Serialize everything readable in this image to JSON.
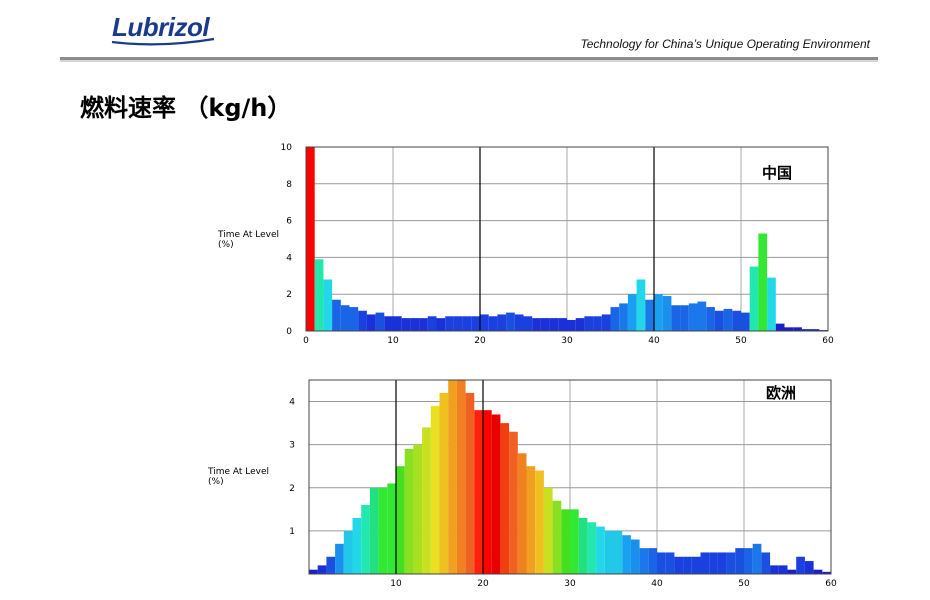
{
  "header": {
    "logo_text": "Lubrizol",
    "tagline": "Technology for China’s Unique Operating Environment"
  },
  "title": "燃料速率 （kg/h）",
  "chart_data": [
    {
      "type": "bar",
      "label": "中国",
      "ylabel_lines": [
        "Time At Level",
        "(%)"
      ],
      "xlim": [
        0,
        60
      ],
      "ylim": [
        0,
        10
      ],
      "xticks": [
        0,
        10,
        20,
        30,
        40,
        50,
        60
      ],
      "yticks": [
        0,
        2,
        4,
        6,
        8,
        10
      ],
      "dark_vlines": [
        20,
        40
      ],
      "x_start": 0,
      "bin_width": 1,
      "values": [
        10,
        3.9,
        2.8,
        1.7,
        1.4,
        1.3,
        1.1,
        0.9,
        1.0,
        0.8,
        0.8,
        0.7,
        0.7,
        0.7,
        0.8,
        0.7,
        0.8,
        0.8,
        0.8,
        0.8,
        0.9,
        0.8,
        0.9,
        1.0,
        0.9,
        0.8,
        0.7,
        0.7,
        0.7,
        0.7,
        0.6,
        0.7,
        0.8,
        0.8,
        0.9,
        1.3,
        1.5,
        2.0,
        2.8,
        1.7,
        2.0,
        1.9,
        1.4,
        1.4,
        1.5,
        1.6,
        1.3,
        1.1,
        1.2,
        1.1,
        1.0,
        3.5,
        5.3,
        2.9,
        0.4,
        0.2,
        0.2,
        0.1,
        0.1,
        0.05
      ],
      "colors": [
        "#ff0000",
        "#22e8b0",
        "#22d8e8",
        "#1a64e6",
        "#1a64e6",
        "#1a64e6",
        "#1a40e0",
        "#1a30d8",
        "#1a50e0",
        "#1a30d8",
        "#1a30d8",
        "#1a30d8",
        "#1a30d8",
        "#1a30d8",
        "#1a40e0",
        "#1a30d8",
        "#1a40e0",
        "#1a40e0",
        "#1a40e0",
        "#1a40e0",
        "#1a40e0",
        "#1a40e0",
        "#1a40e0",
        "#1a50e0",
        "#1a40e0",
        "#1a40e0",
        "#1a30d8",
        "#1a30d8",
        "#1a30d8",
        "#1a30d8",
        "#1a30d8",
        "#1a30d8",
        "#1a40e0",
        "#1a40e0",
        "#1a40e0",
        "#1a64e6",
        "#1a78ea",
        "#1aa0f0",
        "#22d8e8",
        "#1a78ea",
        "#1aa0f0",
        "#1a90ee",
        "#1a64e6",
        "#1a64e6",
        "#1a78ea",
        "#1a78ea",
        "#1a64e6",
        "#1a50e0",
        "#1a64e6",
        "#1a50e0",
        "#1a50e0",
        "#22e8b0",
        "#33e833",
        "#22d8e8",
        "#1a20c8",
        "#1a20c8",
        "#1a20c8",
        "#1a20c8",
        "#1a20c8",
        "#1a20c8"
      ]
    },
    {
      "type": "bar",
      "label": "欧洲",
      "ylabel_lines": [
        "Time At Level",
        "(%)"
      ],
      "xlim": [
        0,
        60
      ],
      "ylim": [
        0,
        4.5
      ],
      "xticks": [
        10,
        20,
        30,
        40,
        50,
        60
      ],
      "yticks": [
        1,
        2,
        3,
        4
      ],
      "dark_vlines": [
        10,
        20
      ],
      "x_start": 0,
      "bin_width": 1,
      "values": [
        0.1,
        0.2,
        0.4,
        0.7,
        1.0,
        1.3,
        1.6,
        2.0,
        2.0,
        2.1,
        2.5,
        2.9,
        3.0,
        3.4,
        3.9,
        4.2,
        4.5,
        4.5,
        4.2,
        3.8,
        3.8,
        3.7,
        3.5,
        3.3,
        2.8,
        2.5,
        2.4,
        2.0,
        1.7,
        1.5,
        1.5,
        1.3,
        1.2,
        1.1,
        1.0,
        1.0,
        0.9,
        0.8,
        0.6,
        0.6,
        0.5,
        0.5,
        0.4,
        0.4,
        0.4,
        0.5,
        0.5,
        0.5,
        0.5,
        0.6,
        0.6,
        0.7,
        0.5,
        0.2,
        0.2,
        0.1,
        0.4,
        0.3,
        0.1,
        0.05
      ],
      "colors": [
        "#1a20c8",
        "#1a30d8",
        "#1a50e0",
        "#1a90ee",
        "#22c8e8",
        "#22d8e8",
        "#22e8b0",
        "#22e080",
        "#33e833",
        "#33e833",
        "#44e020",
        "#88e020",
        "#a8e020",
        "#c8e020",
        "#e8e020",
        "#f0c020",
        "#f0a020",
        "#f08020",
        "#f06020",
        "#ff2010",
        "#ff0000",
        "#e80000",
        "#f04010",
        "#f06020",
        "#f08020",
        "#f0a020",
        "#f0c020",
        "#c8e020",
        "#88e020",
        "#44e020",
        "#33e833",
        "#22e080",
        "#22e8b0",
        "#22d8e8",
        "#22c8e8",
        "#22c8e8",
        "#1aa0f0",
        "#1a90ee",
        "#1a78ea",
        "#1a64e6",
        "#1a50e0",
        "#1a50e0",
        "#1a40e0",
        "#1a40e0",
        "#1a40e0",
        "#1a40e0",
        "#1a40e0",
        "#1a40e0",
        "#1a50e0",
        "#1a50e0",
        "#1a64e6",
        "#1a78ea",
        "#1a50e0",
        "#1a30d8",
        "#1a30d8",
        "#1a20c8",
        "#1a40e0",
        "#1a30d8",
        "#1a20c8",
        "#1a20c8"
      ]
    }
  ]
}
